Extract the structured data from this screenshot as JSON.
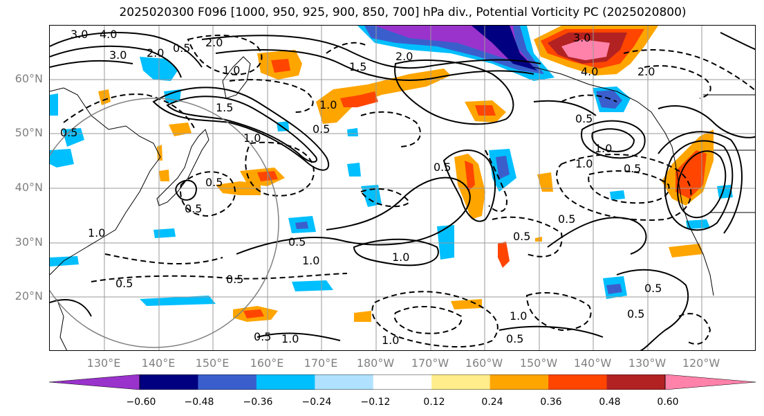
{
  "title": "2025020300 F096 [1000, 950, 925, 900, 850, 700] hPa div., Potential Vorticity PC (2025020800)",
  "lat_labels": [
    "60°N",
    "50°N",
    "40°N",
    "30°N",
    "20°N"
  ],
  "lon_labels": [
    "130°E",
    "140°E",
    "150°E",
    "160°E",
    "170°E",
    "180°W",
    "170°W",
    "160°W",
    "150°W",
    "140°W",
    "130°W",
    "120°W"
  ],
  "colorbar": {
    "colors": [
      "#9933cc",
      "#000080",
      "#3a5fcd",
      "#00bfff",
      "#b0e2ff",
      "#ffffff",
      "#ffec8b",
      "#ffa500",
      "#ff4500",
      "#b22222",
      "#ff82ab"
    ],
    "tick_labels": [
      "−0.60",
      "−0.48",
      "−0.36",
      "−0.24",
      "−0.12",
      "0.12",
      "0.24",
      "0.36",
      "0.48",
      "0.60"
    ]
  },
  "contour_labels": [
    "3.0",
    "4.0",
    "3.0",
    "2.0",
    "0.5",
    "2.0",
    "1.0",
    "1.5",
    "2.0",
    "1.0",
    "1.5",
    "0.5",
    "1.0",
    "0.5",
    "0.5",
    "0.5",
    "1.0",
    "1.0",
    "0.5",
    "0.5",
    "1.0",
    "0.5",
    "0.5",
    "1.0",
    "0.5",
    "1.0",
    "0.5",
    "0.5",
    "0.5",
    "1.0",
    "0.5",
    "3.0",
    "4.0",
    "2.0",
    "1.0",
    "0.5",
    "0.5",
    "1.0",
    "0.5"
  ],
  "colors": {
    "negative_contour": "#000000",
    "positive_contour": "#000000",
    "grid": "#999999",
    "circle": "#808080"
  }
}
